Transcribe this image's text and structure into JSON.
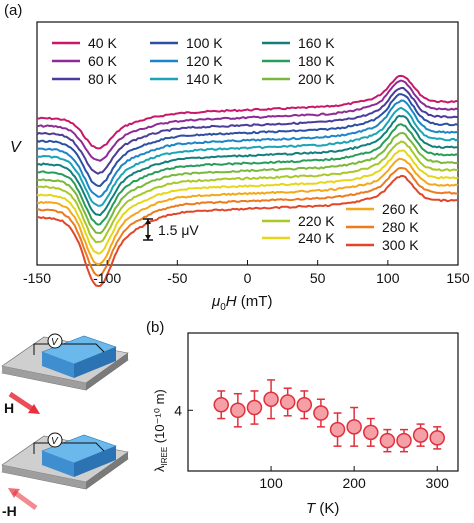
{
  "panel_a": {
    "label": "(a)"
  },
  "panel_b": {
    "label": "(b)"
  },
  "schematic": {
    "voltmeter_label": "V",
    "field_pos_label": "H",
    "field_neg_label": "-H",
    "colors": {
      "substrate": "#bdbdbd",
      "film": "#5aa8e0",
      "base_green": "#7cc24a",
      "arrow": "#e8303a"
    }
  },
  "chart_data": [
    {
      "type": "line",
      "title": "",
      "xlabel_pre": "μ",
      "xlabel_sub": "0",
      "xlabel_post": "H (mT)",
      "ylabel": "V",
      "xlim": [
        -150,
        150
      ],
      "xticks": [
        -150,
        -100,
        -50,
        0,
        50,
        100,
        150
      ],
      "xtick_labels": [
        "-150",
        "-100",
        "-50",
        "0",
        "50",
        "100",
        "150"
      ],
      "scale_bar_label": "1.5 μV",
      "dip_center_mT": -107,
      "peak_center_mT": 110,
      "series": [
        {
          "name": "40 K",
          "color": "#c8186a",
          "dip": 1.0,
          "peak": 1.4
        },
        {
          "name": "60 K",
          "color": "#8d2a96",
          "dip": 1.15,
          "peak": 1.5
        },
        {
          "name": "80 K",
          "color": "#4a3c9a",
          "dip": 1.3,
          "peak": 1.55
        },
        {
          "name": "100 K",
          "color": "#2b4fa3",
          "dip": 1.45,
          "peak": 1.6
        },
        {
          "name": "120 K",
          "color": "#1a86c8",
          "dip": 1.55,
          "peak": 1.65
        },
        {
          "name": "140 K",
          "color": "#1aa4b8",
          "dip": 1.6,
          "peak": 1.65
        },
        {
          "name": "160 K",
          "color": "#137f7c",
          "dip": 1.65,
          "peak": 1.65
        },
        {
          "name": "180 K",
          "color": "#2a9c5a",
          "dip": 1.7,
          "peak": 1.6
        },
        {
          "name": "200 K",
          "color": "#79b83c",
          "dip": 1.75,
          "peak": 1.55
        },
        {
          "name": "220 K",
          "color": "#a8c828",
          "dip": 1.8,
          "peak": 1.5
        },
        {
          "name": "240 K",
          "color": "#e6d61a",
          "dip": 1.9,
          "peak": 1.45
        },
        {
          "name": "260 K",
          "color": "#f3a81c",
          "dip": 2.0,
          "peak": 1.4
        },
        {
          "name": "280 K",
          "color": "#ec7a1e",
          "dip": 2.1,
          "peak": 1.35
        },
        {
          "name": "300 K",
          "color": "#e0472a",
          "dip": 2.2,
          "peak": 1.3
        }
      ]
    },
    {
      "type": "scatter",
      "title": "",
      "xlabel": "T (K)",
      "ylabel_main": "λ",
      "ylabel_sub": "IREE",
      "ylabel_post": " (10⁻¹⁰ m)",
      "xlim": [
        0,
        325
      ],
      "ylim": [
        1.8,
        6.8
      ],
      "xticks": [
        100,
        200,
        300
      ],
      "yticks": [
        4
      ],
      "marker_color": "#f4a0a6",
      "edge_color": "#e0303c",
      "x": [
        40,
        60,
        80,
        100,
        120,
        140,
        160,
        180,
        200,
        220,
        240,
        260,
        280,
        300
      ],
      "y": [
        4.2,
        4.0,
        4.1,
        4.4,
        4.3,
        4.2,
        3.9,
        3.3,
        3.4,
        3.2,
        2.9,
        2.9,
        3.1,
        3.0
      ],
      "err": [
        0.5,
        0.6,
        0.6,
        0.7,
        0.5,
        0.5,
        0.5,
        0.6,
        0.7,
        0.5,
        0.4,
        0.4,
        0.4,
        0.4
      ]
    }
  ]
}
